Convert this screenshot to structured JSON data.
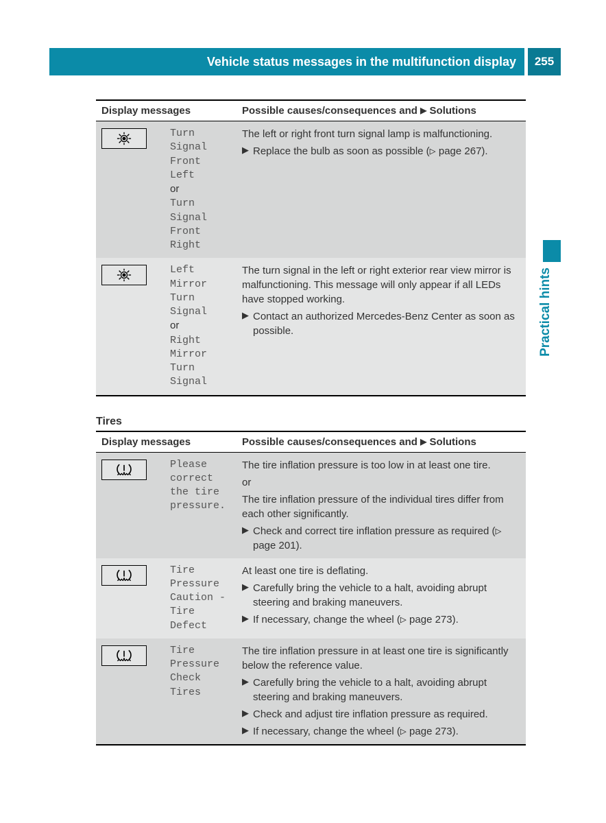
{
  "header": {
    "title": "Vehicle status messages in the multifunction display",
    "page_number": "255",
    "side_label": "Practical hints"
  },
  "colors": {
    "header_bg": "#0b8ba8",
    "pagenum_bg": "#0a7a93",
    "row_dark": "#d6d7d7",
    "row_light": "#e4e5e5"
  },
  "tables": [
    {
      "col_header_left": "Display messages",
      "col_header_right_pre": "Possible causes/consequences and ",
      "col_header_right_post": " Solutions",
      "rows": [
        {
          "icon": "lamp",
          "msg_lines": [
            "Turn Signal Front Left",
            "or",
            "Turn Signal Front Right"
          ],
          "intro": [
            "The left or right front turn signal lamp is malfunctioning."
          ],
          "solutions": [
            "Replace the bulb as soon as possible (▷ page 267)."
          ]
        },
        {
          "icon": "lamp",
          "msg_lines": [
            "Left Mirror Turn Signal",
            "or",
            "Right Mirror Turn Signal"
          ],
          "intro": [
            "The turn signal in the left or right exterior rear view mirror is malfunctioning. This message will only appear if all LEDs have stopped working."
          ],
          "solutions": [
            "Contact an authorized Mercedes-Benz Center as soon as possible."
          ]
        }
      ]
    },
    {
      "section_title": "Tires",
      "col_header_left": "Display messages",
      "col_header_right_pre": "Possible causes/consequences and ",
      "col_header_right_post": " Solutions",
      "rows": [
        {
          "icon": "tpms",
          "msg_lines": [
            "Please correct the tire pressure."
          ],
          "intro": [
            "The tire inflation pressure is too low in at least one tire.",
            "or",
            "The tire inflation pressure of the individual tires differ from each other significantly."
          ],
          "solutions": [
            "Check and correct tire inflation pressure as required (▷ page 201)."
          ]
        },
        {
          "icon": "tpms",
          "msg_lines": [
            "Tire Pressure Caution - Tire Defect"
          ],
          "intro": [
            "At least one tire is deflating."
          ],
          "solutions": [
            "Carefully bring the vehicle to a halt, avoiding abrupt steering and braking maneuvers.",
            "If necessary, change the wheel (▷ page 273)."
          ]
        },
        {
          "icon": "tpms",
          "msg_lines": [
            "Tire Pressure Check Tires"
          ],
          "intro": [
            "The tire inflation pressure in at least one tire is significantly below the reference value."
          ],
          "solutions": [
            "Carefully bring the vehicle to a halt, avoiding abrupt steering and braking maneuvers.",
            "Check and adjust tire inflation pressure as required.",
            "If necessary, change the wheel (▷ page 273)."
          ]
        }
      ]
    }
  ]
}
